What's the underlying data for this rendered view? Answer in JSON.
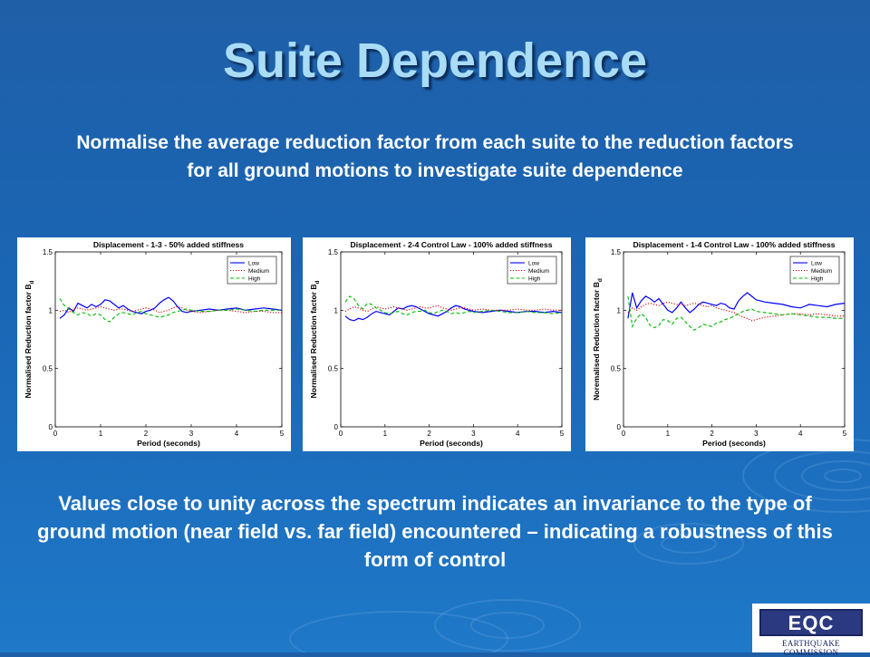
{
  "slide": {
    "title": "Suite Dependence",
    "intro": "Normalise the average reduction factor from each suite to the reduction factors for all ground motions to investigate suite dependence",
    "conclusion": "Values close to unity across the spectrum indicates an invariance to the type of ground motion (near field vs. far field) encountered – indicating a robustness of this form of control",
    "logo": {
      "text": "EQC",
      "subtitle": "EARTHQUAKE COMMISSION"
    },
    "background_color": "#1f6cba",
    "title_color": "#a9dcf6"
  },
  "chart_data": [
    {
      "type": "line",
      "title": "Displacement - 1-3 - 50% added stiffness",
      "xlabel": "Period (seconds)",
      "ylabel": "Normalised Reduction factor B",
      "ylabel_subscript": "d",
      "xlim": [
        0,
        5
      ],
      "ylim": [
        0,
        1.5
      ],
      "xticks": [
        "0",
        "1",
        "2",
        "3",
        "4",
        "5"
      ],
      "yticks": [
        "0",
        "0.5",
        "1",
        "1.5"
      ],
      "legend_position": "top-right",
      "x": [
        0.1,
        0.2,
        0.3,
        0.4,
        0.5,
        0.6,
        0.7,
        0.8,
        0.9,
        1.0,
        1.1,
        1.2,
        1.3,
        1.4,
        1.5,
        1.6,
        1.7,
        1.8,
        1.9,
        2.0,
        2.1,
        2.2,
        2.3,
        2.4,
        2.5,
        2.6,
        2.7,
        2.8,
        2.9,
        3.0,
        3.2,
        3.4,
        3.6,
        3.8,
        4.0,
        4.2,
        4.4,
        4.6,
        4.8,
        5.0
      ],
      "series": [
        {
          "name": "Low",
          "color": "#0000ff",
          "dash": "solid",
          "values": [
            0.93,
            0.96,
            1.02,
            0.99,
            1.06,
            1.04,
            1.02,
            1.05,
            1.03,
            1.05,
            1.09,
            1.08,
            1.05,
            1.02,
            1.04,
            1.01,
            0.99,
            0.98,
            0.97,
            0.99,
            1.0,
            1.02,
            1.06,
            1.09,
            1.11,
            1.08,
            1.03,
            0.99,
            0.98,
            0.99,
            1.0,
            1.01,
            1.0,
            1.01,
            1.02,
            1.0,
            1.01,
            1.02,
            1.01,
            1.0
          ]
        },
        {
          "name": "Medium",
          "color": "#cc0000",
          "dash": "dotted",
          "values": [
            0.99,
            1.0,
            0.98,
            1.01,
            1.02,
            1.01,
            1.0,
            1.01,
            1.02,
            1.03,
            1.02,
            1.01,
            1.0,
            1.01,
            1.01,
            1.0,
            0.99,
            1.0,
            1.01,
            1.02,
            1.01,
            1.0,
            0.98,
            0.99,
            1.0,
            1.02,
            1.03,
            1.02,
            1.0,
            0.99,
            0.98,
            0.99,
            1.0,
            1.0,
            0.99,
            0.98,
            0.99,
            0.99,
            0.98,
            0.98
          ]
        },
        {
          "name": "High",
          "color": "#00bb00",
          "dash": "dashed",
          "values": [
            1.1,
            1.04,
            1.01,
            0.98,
            0.96,
            0.98,
            0.97,
            0.95,
            0.97,
            0.96,
            0.92,
            0.9,
            0.94,
            0.97,
            0.98,
            0.97,
            0.96,
            0.98,
            0.99,
            0.97,
            0.96,
            0.95,
            0.94,
            0.95,
            0.96,
            0.98,
            0.99,
            1.0,
            1.01,
            1.0,
            0.99,
            0.99,
            1.0,
            1.0,
            1.01,
            1.0,
            0.99,
            1.0,
            1.0,
            1.0
          ]
        }
      ]
    },
    {
      "type": "line",
      "title": "Displacement - 2-4 Control Law - 100% added stiffness",
      "xlabel": "Period (seconds)",
      "ylabel": "Normalised Reduction factor B",
      "ylabel_subscript": "d",
      "xlim": [
        0,
        5
      ],
      "ylim": [
        0,
        1.5
      ],
      "xticks": [
        "0",
        "1",
        "2",
        "3",
        "4",
        "5"
      ],
      "yticks": [
        "0",
        "0.5",
        "1",
        "1.5"
      ],
      "legend_position": "top-right",
      "x": [
        0.1,
        0.2,
        0.3,
        0.4,
        0.5,
        0.6,
        0.7,
        0.8,
        0.9,
        1.0,
        1.1,
        1.2,
        1.3,
        1.4,
        1.5,
        1.6,
        1.7,
        1.8,
        1.9,
        2.0,
        2.1,
        2.2,
        2.3,
        2.4,
        2.5,
        2.6,
        2.7,
        2.8,
        2.9,
        3.0,
        3.2,
        3.4,
        3.6,
        3.8,
        4.0,
        4.2,
        4.4,
        4.6,
        4.8,
        5.0
      ],
      "series": [
        {
          "name": "Low",
          "color": "#0000ff",
          "dash": "solid",
          "values": [
            0.95,
            0.92,
            0.91,
            0.93,
            0.92,
            0.94,
            0.97,
            0.99,
            0.98,
            0.97,
            0.96,
            0.99,
            1.02,
            1.01,
            1.03,
            1.04,
            1.03,
            1.01,
            0.99,
            0.97,
            0.96,
            0.95,
            0.97,
            0.99,
            1.02,
            1.04,
            1.03,
            1.01,
            1.0,
            0.99,
            0.98,
            0.99,
            1.0,
            0.99,
            0.98,
            0.99,
            0.99,
            0.98,
            0.99,
            0.98
          ]
        },
        {
          "name": "Medium",
          "color": "#cc0000",
          "dash": "dotted",
          "values": [
            0.99,
            1.01,
            1.03,
            1.02,
            1.0,
            0.99,
            1.01,
            1.03,
            1.02,
            1.01,
            1.02,
            1.03,
            1.02,
            1.01,
            1.0,
            1.01,
            1.02,
            1.03,
            1.02,
            1.02,
            1.03,
            1.04,
            1.02,
            1.01,
            1.0,
            1.01,
            1.02,
            1.02,
            1.01,
            1.0,
            1.01,
            1.0,
            1.0,
            1.0,
            1.01,
            1.0,
            1.0,
            1.01,
            1.0,
            1.0
          ]
        },
        {
          "name": "High",
          "color": "#00bb00",
          "dash": "dashed",
          "values": [
            1.07,
            1.12,
            1.1,
            1.04,
            1.01,
            1.06,
            1.05,
            1.02,
            1.0,
            0.98,
            0.97,
            0.98,
            0.99,
            0.97,
            0.96,
            0.98,
            0.99,
            0.99,
            1.0,
            0.98,
            0.97,
            0.99,
            1.0,
            0.99,
            0.97,
            0.98,
            0.97,
            0.98,
            0.99,
            0.98,
            0.99,
            1.0,
            0.99,
            0.98,
            0.98,
            0.99,
            0.98,
            0.98,
            0.97,
            0.98
          ]
        }
      ]
    },
    {
      "type": "line",
      "title": "Displacement - 1-4 Control Law - 100% added stiffness",
      "xlabel": "Period (seconds)",
      "ylabel": "Noremalised Reduction factor B",
      "ylabel_subscript": "d",
      "xlim": [
        0,
        5
      ],
      "ylim": [
        0,
        1.5
      ],
      "xticks": [
        "0",
        "1",
        "2",
        "3",
        "4",
        "5"
      ],
      "yticks": [
        "0",
        "0.5",
        "1",
        "1.5"
      ],
      "legend_position": "top-right",
      "x": [
        0.1,
        0.2,
        0.3,
        0.4,
        0.5,
        0.6,
        0.7,
        0.8,
        0.9,
        1.0,
        1.1,
        1.2,
        1.3,
        1.4,
        1.5,
        1.6,
        1.7,
        1.8,
        1.9,
        2.0,
        2.1,
        2.2,
        2.3,
        2.4,
        2.5,
        2.6,
        2.7,
        2.8,
        2.9,
        3.0,
        3.2,
        3.4,
        3.6,
        3.8,
        4.0,
        4.2,
        4.4,
        4.6,
        4.8,
        5.0
      ],
      "series": [
        {
          "name": "Low",
          "color": "#0000ff",
          "dash": "solid",
          "values": [
            0.93,
            1.15,
            1.02,
            1.08,
            1.12,
            1.1,
            1.07,
            1.1,
            1.05,
            1.0,
            0.98,
            1.02,
            1.07,
            1.02,
            0.98,
            1.01,
            1.05,
            1.07,
            1.06,
            1.05,
            1.04,
            1.06,
            1.05,
            1.02,
            1.01,
            1.08,
            1.12,
            1.15,
            1.12,
            1.09,
            1.07,
            1.06,
            1.05,
            1.03,
            1.02,
            1.05,
            1.04,
            1.03,
            1.05,
            1.06
          ]
        },
        {
          "name": "Medium",
          "color": "#cc0000",
          "dash": "dotted",
          "values": [
            0.98,
            1.02,
            1.0,
            1.03,
            1.05,
            1.06,
            1.05,
            1.04,
            1.06,
            1.07,
            1.06,
            1.05,
            1.05,
            1.04,
            1.05,
            1.06,
            1.05,
            1.04,
            1.03,
            1.04,
            1.02,
            1.01,
            1.0,
            0.99,
            0.98,
            0.96,
            0.94,
            0.93,
            0.91,
            0.92,
            0.94,
            0.95,
            0.96,
            0.97,
            0.97,
            0.96,
            0.97,
            0.96,
            0.95,
            0.95
          ]
        },
        {
          "name": "High",
          "color": "#00bb00",
          "dash": "dashed",
          "values": [
            1.12,
            0.86,
            0.93,
            0.97,
            0.94,
            0.87,
            0.85,
            0.87,
            0.92,
            0.91,
            0.88,
            0.93,
            0.94,
            0.9,
            0.86,
            0.83,
            0.85,
            0.88,
            0.87,
            0.86,
            0.89,
            0.9,
            0.92,
            0.93,
            0.95,
            0.97,
            0.99,
            1.0,
            1.01,
            0.99,
            0.98,
            0.97,
            0.96,
            0.97,
            0.96,
            0.95,
            0.94,
            0.94,
            0.93,
            0.93
          ]
        }
      ]
    }
  ]
}
